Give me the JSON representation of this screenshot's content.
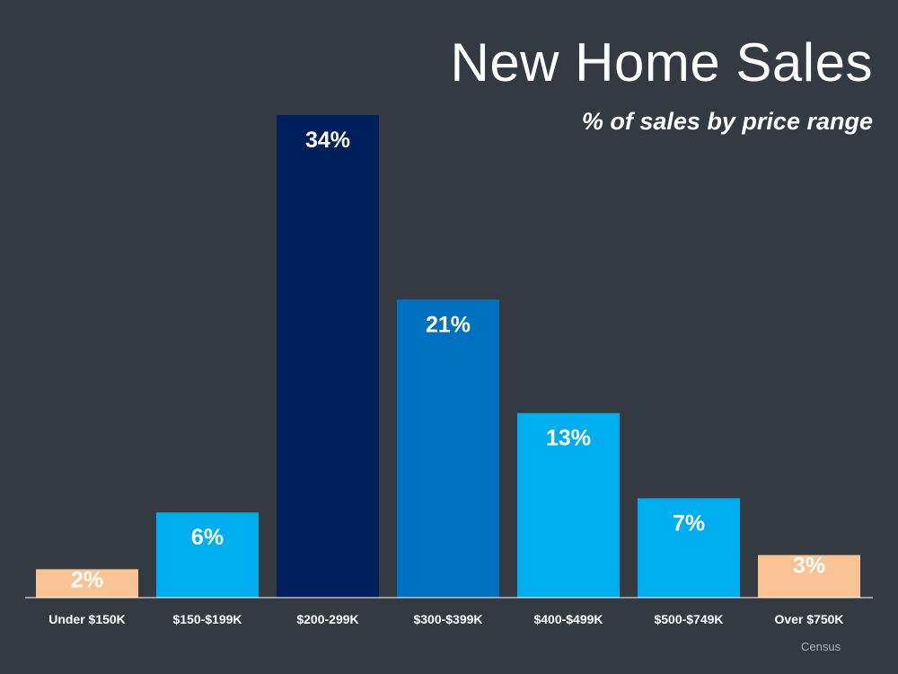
{
  "chart_data": {
    "type": "bar",
    "title": "New Home Sales",
    "subtitle": "% of sales by price range",
    "categories": [
      "Under $150K",
      "$150-$199K",
      "$200-299K",
      "$300-$399K",
      "$400-$499K",
      "$500-$749K",
      "Over $750K"
    ],
    "values": [
      2,
      6,
      34,
      21,
      13,
      7,
      3
    ],
    "data_labels": [
      "2%",
      "6%",
      "34%",
      "21%",
      "13%",
      "7%",
      "3%"
    ],
    "bar_colors": [
      "#f9c394",
      "#00aeef",
      "#00205b",
      "#0070c0",
      "#00aeef",
      "#00aeef",
      "#f9c394"
    ],
    "ylim": [
      0,
      34
    ],
    "grid": false,
    "legend": "none",
    "source": "Census"
  },
  "colors": {
    "background": "#333a42",
    "text": "#ffffff",
    "baseline": "#ffffff",
    "source_text": "#a9b0b8"
  }
}
